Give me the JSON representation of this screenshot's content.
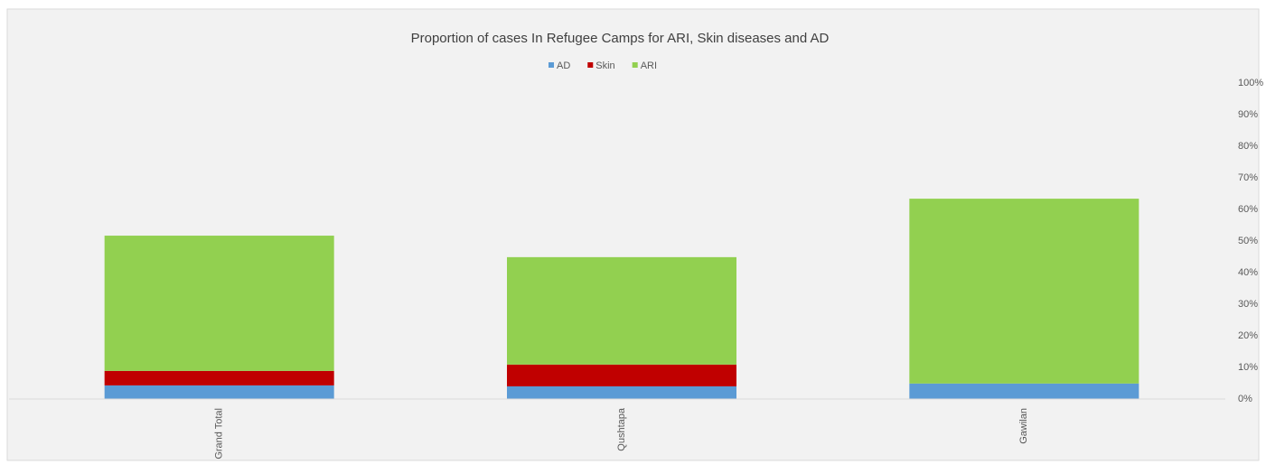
{
  "chart_data": {
    "type": "stacked-bar",
    "title": "Proportion of cases In Refugee Camps for ARI, Skin diseases and AD",
    "categories": [
      "Grand Total",
      "Qushtapa",
      "Gawilan"
    ],
    "series": [
      {
        "name": "AD",
        "color": "#5b9bd5",
        "values": [
          4.3,
          4.0,
          4.9
        ]
      },
      {
        "name": "Skin",
        "color": "#c00000",
        "values": [
          4.6,
          6.9,
          0
        ]
      },
      {
        "name": "ARI",
        "color": "#92d050",
        "values": [
          42.8,
          34.0,
          58.5
        ]
      }
    ],
    "ylim": [
      0,
      100
    ],
    "yticks": [
      {
        "value": 0,
        "label": "0%"
      },
      {
        "value": 10,
        "label": "10%"
      },
      {
        "value": 20,
        "label": "20%"
      },
      {
        "value": 30,
        "label": "30%"
      },
      {
        "value": 40,
        "label": "40%"
      },
      {
        "value": 50,
        "label": "50%"
      },
      {
        "value": 60,
        "label": "60%"
      },
      {
        "value": 70,
        "label": "70%"
      },
      {
        "value": 80,
        "label": "80%"
      },
      {
        "value": 90,
        "label": "90%"
      },
      {
        "value": 100,
        "label": "100%"
      }
    ],
    "y_axis_side": "right",
    "legend": "top"
  }
}
